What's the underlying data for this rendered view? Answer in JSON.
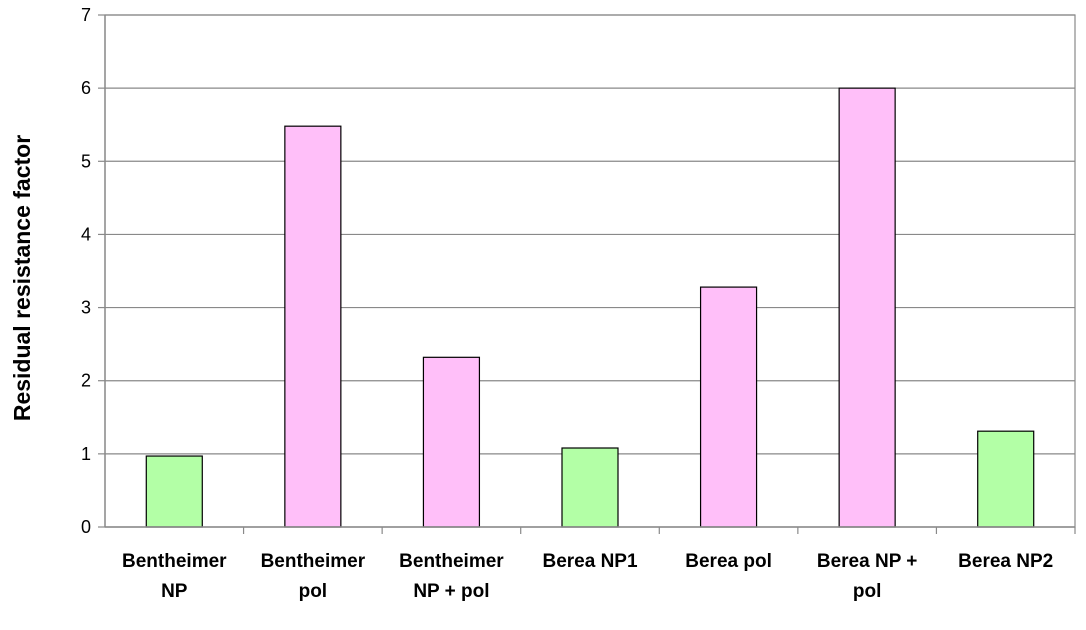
{
  "chart_data": {
    "type": "bar",
    "title": "",
    "xlabel": "",
    "ylabel": "Residual resistance factor",
    "ylim": [
      0,
      7
    ],
    "yticks": [
      0,
      1,
      2,
      3,
      4,
      5,
      6,
      7
    ],
    "grid": true,
    "legend": "none",
    "categories": [
      [
        "Bentheimer",
        "NP"
      ],
      [
        "Bentheimer",
        "pol"
      ],
      [
        "Bentheimer",
        "NP + pol"
      ],
      [
        "Berea NP1"
      ],
      [
        "Berea pol"
      ],
      [
        "Berea  NP +",
        "pol"
      ],
      [
        "Berea NP2"
      ]
    ],
    "values": [
      0.97,
      5.48,
      2.32,
      1.08,
      3.28,
      6.0,
      1.31
    ],
    "colors": [
      "#b3ffa6",
      "#ffbff9",
      "#ffbff9",
      "#b3ffa6",
      "#ffbff9",
      "#ffbff9",
      "#b3ffa6"
    ]
  }
}
